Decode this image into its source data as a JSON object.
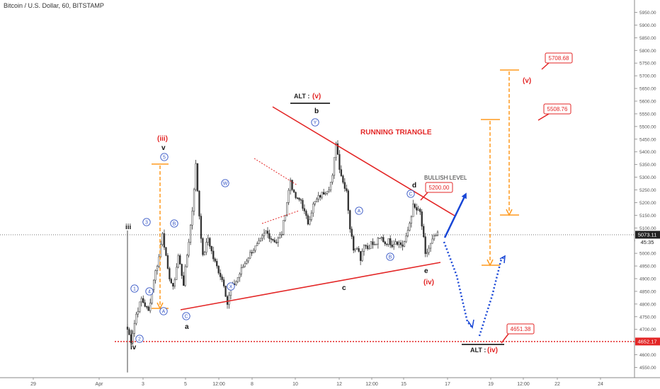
{
  "header": {
    "symbol_title": "Bitcoin / U.S. Dollar, 60, BITSTAMP"
  },
  "colors": {
    "red": "#e32626",
    "orange": "#ff9a1e",
    "blue": "#1846d6",
    "wave_circle": "#3757c6",
    "candle": "#333333",
    "axis_text": "#555555"
  },
  "chart_data": {
    "type": "candlestick",
    "symbol": "BTCUSD",
    "timeframe": "60",
    "exchange": "BITSTAMP",
    "ylim": [
      4530,
      5975
    ],
    "x_ticks": [
      "29",
      "Apr",
      "3",
      "5",
      "12:00",
      "8",
      "10",
      "12",
      "12:00",
      "15",
      "17",
      "19",
      "12:00",
      "22",
      "24"
    ],
    "y_ticks": [
      "4550.00",
      "4600.00",
      "4650.00",
      "4700.00",
      "4750.00",
      "4800.00",
      "4850.00",
      "4900.00",
      "4950.00",
      "5000.00",
      "5050.00",
      "5100.00",
      "5150.00",
      "5200.00",
      "5250.00",
      "5300.00",
      "5350.00",
      "5400.00",
      "5450.00",
      "5500.00",
      "5550.00",
      "5600.00",
      "5650.00",
      "5700.00",
      "5750.00",
      "5800.00",
      "5850.00",
      "5900.00",
      "5950.00"
    ],
    "price_path": [
      [
        0,
        4700
      ],
      [
        2,
        4655
      ],
      [
        5,
        4760
      ],
      [
        8,
        4820
      ],
      [
        12,
        4770
      ],
      [
        15,
        4900
      ],
      [
        18,
        4985
      ],
      [
        20,
        5085
      ],
      [
        23,
        4930
      ],
      [
        26,
        4860
      ],
      [
        29,
        4990
      ],
      [
        32,
        4880
      ],
      [
        35,
        5050
      ],
      [
        37,
        5170
      ],
      [
        39,
        5348
      ],
      [
        41,
        5150
      ],
      [
        43,
        4985
      ],
      [
        46,
        5060
      ],
      [
        49,
        4980
      ],
      [
        52,
        4930
      ],
      [
        55,
        4880
      ],
      [
        57,
        4800
      ],
      [
        59,
        4860
      ],
      [
        62,
        4890
      ],
      [
        65,
        4935
      ],
      [
        68,
        4975
      ],
      [
        71,
        5010
      ],
      [
        74,
        5030
      ],
      [
        76,
        5050
      ],
      [
        79,
        5085
      ],
      [
        82,
        5060
      ],
      [
        85,
        5045
      ],
      [
        88,
        5080
      ],
      [
        90,
        5160
      ],
      [
        93,
        5290
      ],
      [
        95,
        5230
      ],
      [
        97,
        5210
      ],
      [
        99,
        5210
      ],
      [
        101,
        5160
      ],
      [
        103,
        5120
      ],
      [
        106,
        5190
      ],
      [
        109,
        5220
      ],
      [
        112,
        5240
      ],
      [
        115,
        5260
      ],
      [
        117,
        5300
      ],
      [
        119,
        5440
      ],
      [
        121,
        5340
      ],
      [
        123,
        5280
      ],
      [
        125,
        5250
      ],
      [
        127,
        5100
      ],
      [
        129,
        5020
      ],
      [
        131,
        5030
      ],
      [
        133,
        4980
      ],
      [
        135,
        5040
      ],
      [
        137,
        5020
      ],
      [
        139,
        5040
      ],
      [
        141,
        5030
      ],
      [
        143,
        5050
      ],
      [
        145,
        5060
      ],
      [
        147,
        5040
      ],
      [
        149,
        5050
      ],
      [
        151,
        5035
      ],
      [
        153,
        5050
      ],
      [
        155,
        5040
      ],
      [
        157,
        5030
      ],
      [
        159,
        5060
      ],
      [
        161,
        5120
      ],
      [
        163,
        5185
      ],
      [
        165,
        5170
      ],
      [
        167,
        5160
      ],
      [
        169,
        5055
      ],
      [
        170,
        4990
      ],
      [
        172,
        5020
      ],
      [
        174,
        5050
      ],
      [
        176,
        5070
      ],
      [
        177,
        5073
      ]
    ],
    "last_price": "5073.11",
    "countdown": "45:35",
    "support_level": "4652.17",
    "wave_labels": [
      "iii",
      "iv",
      "(iii)",
      "v",
      "a",
      "b",
      "c",
      "d",
      "e",
      "(iv)",
      "(v)"
    ],
    "subwave_labels": [
      "1",
      "2",
      "3",
      "4",
      "5",
      "A",
      "B",
      "C",
      "W",
      "X",
      "Y",
      "A",
      "B",
      "C"
    ],
    "annotations": {
      "alt_top": "ALT :",
      "alt_top_wave": "(v)",
      "running_triangle": "RUNNING TRIANGLE",
      "bullish_level": "BULLISH LEVEL",
      "alt_bottom": "ALT :",
      "alt_bottom_wave": "(iv)"
    },
    "price_boxes": [
      "5708.68",
      "5508.76",
      "5200.00",
      "4651.38"
    ]
  }
}
